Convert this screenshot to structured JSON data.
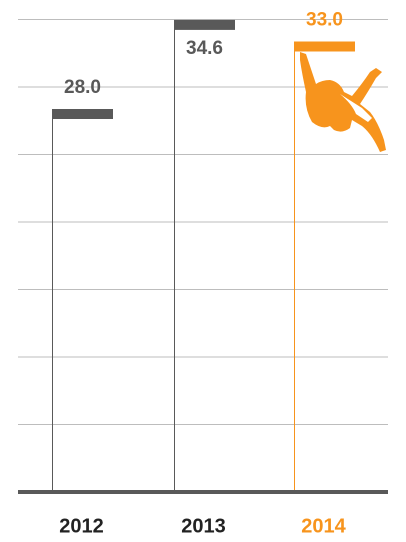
{
  "chart_data": {
    "type": "bar",
    "categories": [
      "2012",
      "2013",
      "2014"
    ],
    "values": [
      28.0,
      34.6,
      33.0
    ],
    "value_labels": [
      "28.0",
      "34.6",
      "33.0"
    ],
    "colors": [
      "#595959",
      "#595959",
      "#f7941d"
    ],
    "ylim": [
      0,
      36
    ],
    "yticks": [
      0,
      5,
      10,
      15,
      20,
      25,
      30,
      35
    ],
    "grid": true
  }
}
